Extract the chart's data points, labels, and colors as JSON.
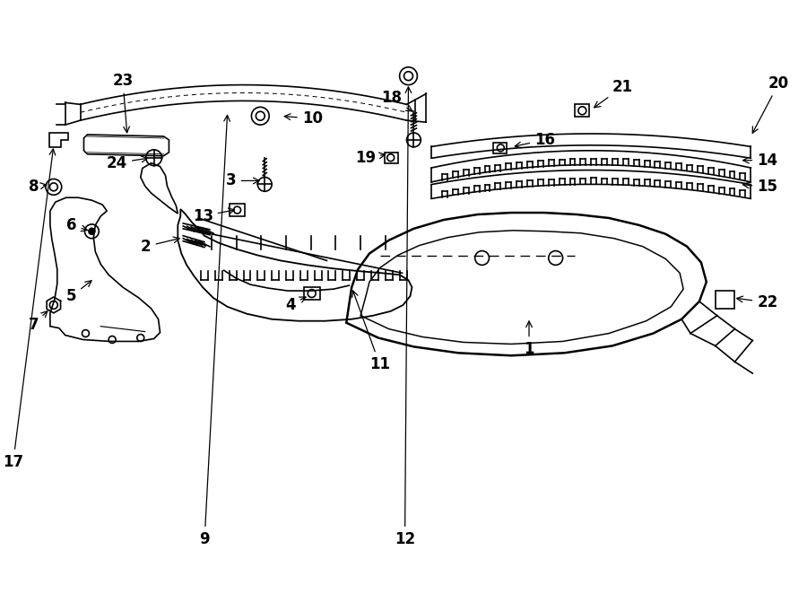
{
  "background_color": "#ffffff",
  "line_color": "#000000",
  "fig_width": 9.0,
  "fig_height": 6.62,
  "dpi": 100,
  "labels": [
    [
      "1",
      588,
      272,
      588,
      308
    ],
    [
      "2",
      162,
      388,
      198,
      398
    ],
    [
      "3",
      258,
      462,
      288,
      462
    ],
    [
      "4",
      325,
      322,
      340,
      333
    ],
    [
      "5",
      78,
      332,
      98,
      352
    ],
    [
      "6",
      78,
      412,
      94,
      405
    ],
    [
      "7",
      35,
      300,
      48,
      318
    ],
    [
      "8",
      35,
      455,
      48,
      458
    ],
    [
      "9",
      228,
      58,
      248,
      540
    ],
    [
      "10",
      332,
      532,
      308,
      535
    ],
    [
      "11",
      408,
      255,
      388,
      342
    ],
    [
      "12",
      448,
      58,
      452,
      572
    ],
    [
      "13",
      232,
      422,
      260,
      430
    ],
    [
      "14",
      845,
      485,
      825,
      485
    ],
    [
      "15",
      845,
      455,
      825,
      458
    ],
    [
      "16",
      594,
      508,
      568,
      500
    ],
    [
      "17",
      18,
      145,
      52,
      502
    ],
    [
      "18",
      445,
      555,
      460,
      538
    ],
    [
      "19",
      415,
      488,
      430,
      492
    ],
    [
      "20",
      858,
      572,
      838,
      512
    ],
    [
      "21",
      682,
      568,
      658,
      542
    ],
    [
      "22",
      845,
      325,
      818,
      330
    ],
    [
      "23",
      130,
      575,
      135,
      512
    ],
    [
      "24",
      135,
      482,
      162,
      488
    ]
  ]
}
